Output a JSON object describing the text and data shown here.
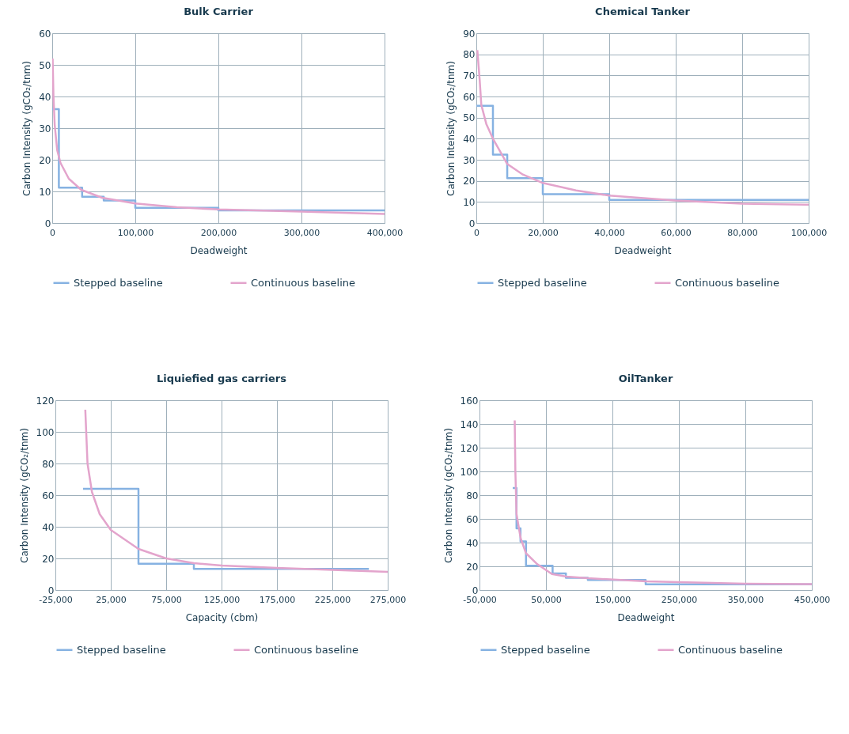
{
  "chart_data": [
    {
      "type": "line",
      "title": "Bulk Carrier",
      "xlabel": "Deadweight",
      "ylabel": "Carbon Intensity (gCO₂/tnm)",
      "xlim": [
        0,
        400000
      ],
      "xticks": [
        0,
        {
          "value": 100000,
          "label": "100,000"
        },
        {
          "value": 200000,
          "label": "200,000"
        },
        {
          "value": 300000,
          "label": "300,000"
        },
        {
          "value": 400000,
          "label": "400,000"
        }
      ],
      "ylim": [
        0,
        60
      ],
      "yticks": [
        0,
        10,
        20,
        30,
        40,
        50,
        60
      ],
      "grid": true,
      "legend": "bottom",
      "series": [
        {
          "name": "Stepped baseline",
          "color": "#86b2e2",
          "type": "step",
          "x": [
            0,
            8000,
            36000,
            62000,
            100000,
            200000,
            400000
          ],
          "values": [
            36,
            11.2,
            8.3,
            7.1,
            4.8,
            4,
            4
          ]
        },
        {
          "name": "Continuous baseline",
          "color": "#e3a4cc",
          "type": "line",
          "x": [
            500,
            1500,
            3000,
            6000,
            10000,
            20000,
            35000,
            60000,
            100000,
            150000,
            200000,
            300000,
            400000
          ],
          "values": [
            52,
            40,
            31,
            23,
            19,
            14,
            10.5,
            8,
            6.2,
            5,
            4.3,
            3.6,
            2.9
          ]
        }
      ]
    },
    {
      "type": "line",
      "title": "Chemical Tanker",
      "xlabel": "Deadweight",
      "ylabel": "Carbon Intensity (gCO₂/tnm)",
      "xlim": [
        0,
        100000
      ],
      "xticks": [
        0,
        {
          "value": 20000,
          "label": "20,000"
        },
        {
          "value": 40000,
          "label": "40,000"
        },
        {
          "value": 60000,
          "label": "60,000"
        },
        {
          "value": 80000,
          "label": "80,000"
        },
        {
          "value": 100000,
          "label": "100,000"
        }
      ],
      "ylim": [
        0,
        90
      ],
      "yticks": [
        0,
        10,
        20,
        30,
        40,
        50,
        60,
        70,
        80,
        90
      ],
      "grid": true,
      "legend": "bottom",
      "series": [
        {
          "name": "Stepped baseline",
          "color": "#86b2e2",
          "type": "step",
          "x": [
            0,
            5000,
            9300,
            20000,
            40000,
            100000
          ],
          "values": [
            55.6,
            32.4,
            21.3,
            13.7,
            11,
            11
          ]
        },
        {
          "name": "Continuous baseline",
          "color": "#e3a4cc",
          "type": "line",
          "x": [
            300,
            1000,
            1500,
            3000,
            5000,
            9300,
            14000,
            20000,
            30000,
            40000,
            60000,
            80000,
            100000
          ],
          "values": [
            82,
            68,
            56,
            47,
            40,
            28,
            23,
            19,
            15.5,
            13,
            10.7,
            9.2,
            8.7
          ]
        }
      ]
    },
    {
      "type": "line",
      "title": "Liquiefied gas carriers",
      "xlabel": "Capacity (cbm)",
      "ylabel": "Carbon Intensity (gCO₂/tnm)",
      "xlim": [
        -25000,
        275000
      ],
      "xticks": [
        {
          "value": -25000,
          "label": "-25,000"
        },
        {
          "value": 25000,
          "label": "25,000"
        },
        {
          "value": 75000,
          "label": "75,000"
        },
        {
          "value": 125000,
          "label": "125,000"
        },
        {
          "value": 175000,
          "label": "175,000"
        },
        {
          "value": 225000,
          "label": "225,000"
        },
        {
          "value": 275000,
          "label": "275,000"
        }
      ],
      "ylim": [
        0,
        120
      ],
      "yticks": [
        0,
        20,
        40,
        60,
        80,
        100,
        120
      ],
      "grid": true,
      "legend": "bottom",
      "series": [
        {
          "name": "Stepped baseline",
          "color": "#86b2e2",
          "type": "step",
          "x": [
            0,
            50000,
            100000,
            258000
          ],
          "values": [
            64,
            16.6,
            13.4,
            13.4
          ]
        },
        {
          "name": "Continuous baseline",
          "color": "#e3a4cc",
          "type": "line",
          "x": [
            2000,
            4000,
            8000,
            15000,
            25000,
            50000,
            75000,
            100000,
            125000,
            175000,
            225000,
            275000
          ],
          "values": [
            114,
            80,
            62,
            48,
            38,
            26,
            20,
            17,
            15.5,
            14,
            12.8,
            11.5
          ]
        }
      ]
    },
    {
      "type": "line",
      "title": "OilTanker",
      "xlabel": "Deadweight",
      "ylabel": "Carbon Intensity (gCO₂/tnm)",
      "xlim": [
        -50000,
        450000
      ],
      "xticks": [
        {
          "value": -50000,
          "label": "-50,000"
        },
        {
          "value": 50000,
          "label": "50,000"
        },
        {
          "value": 150000,
          "label": "150,000"
        },
        {
          "value": 250000,
          "label": "250,000"
        },
        {
          "value": 350000,
          "label": "350,000"
        },
        {
          "value": 450000,
          "label": "450,000"
        }
      ],
      "ylim": [
        0,
        160
      ],
      "yticks": [
        0,
        20,
        40,
        60,
        80,
        100,
        120,
        140,
        160
      ],
      "grid": true,
      "legend": "bottom",
      "series": [
        {
          "name": "Stepped baseline",
          "color": "#86b2e2",
          "type": "step",
          "x": [
            0,
            5700,
            11700,
            20000,
            60000,
            80000,
            113000,
            200000,
            450000
          ],
          "values": [
            86,
            52,
            41,
            20.5,
            14,
            10.4,
            8.5,
            4.8,
            4.8
          ]
        },
        {
          "name": "Continuous baseline",
          "color": "#e3a4cc",
          "type": "line",
          "x": [
            3000,
            4000,
            5700,
            12000,
            20000,
            37000,
            59000,
            81000,
            113000,
            201000,
            250000,
            350000,
            450000
          ],
          "values": [
            143,
            100,
            64,
            43.5,
            31,
            21.8,
            13.5,
            11.4,
            10,
            7.3,
            6.6,
            5.4,
            5
          ]
        }
      ]
    }
  ]
}
